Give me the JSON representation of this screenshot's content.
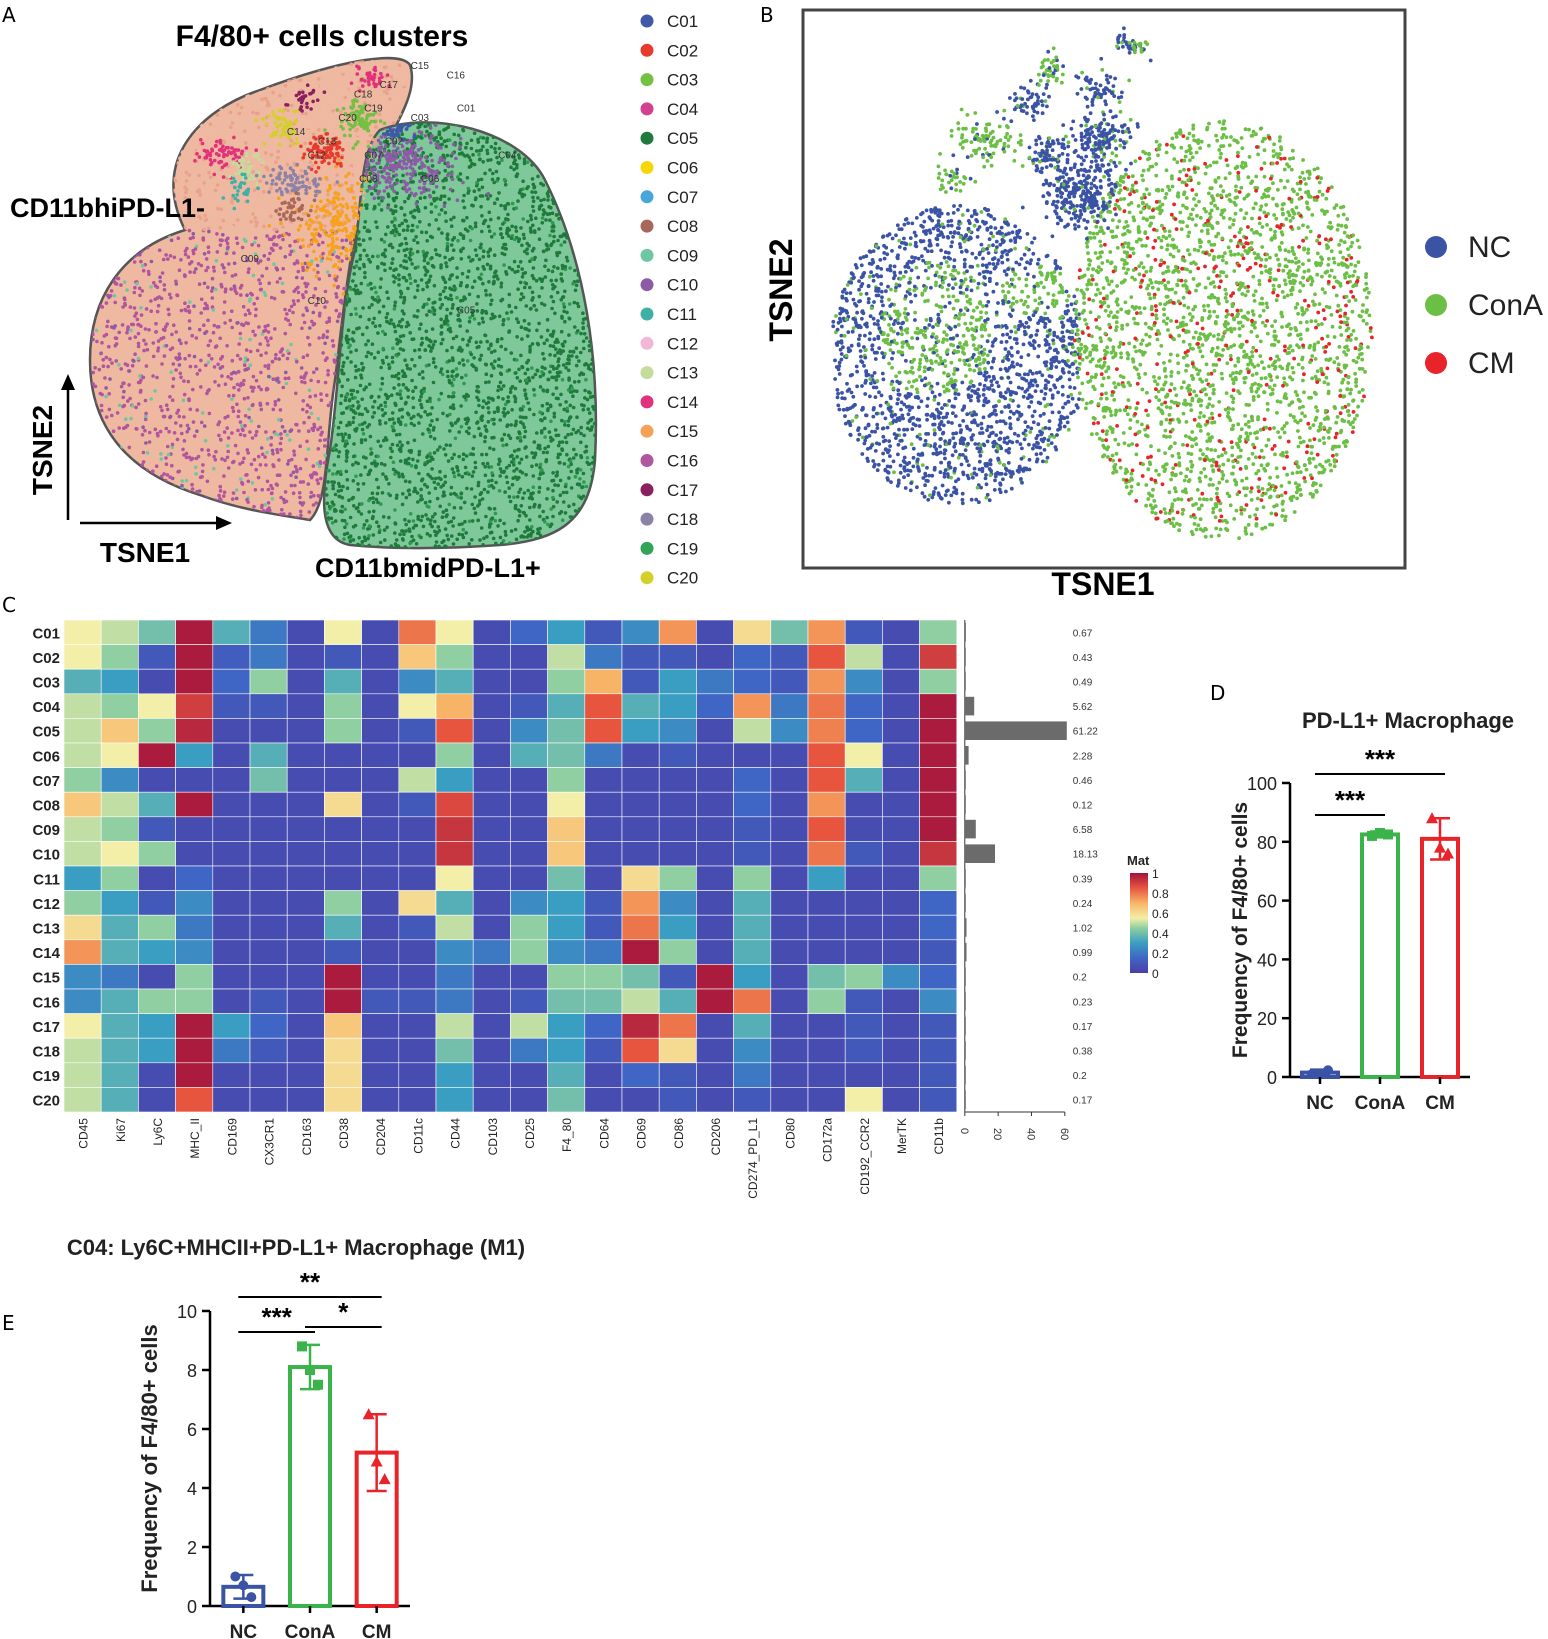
{
  "panel_letters": {
    "a": "A",
    "b": "B",
    "c": "C",
    "d": "D",
    "e": "E"
  },
  "chart_data": [
    {
      "panel": "A",
      "type": "scatter",
      "title": "F4/80+ cells clusters",
      "xlabel": "TSNE1",
      "ylabel": "TSNE2",
      "groups": [
        "CD11bhiPD-L1-",
        "CD11bmidPD-L1+"
      ],
      "legend": [
        "C01",
        "C02",
        "C03",
        "C04",
        "C05",
        "C06",
        "C07",
        "C08",
        "C09",
        "C10",
        "C11",
        "C12",
        "C13",
        "C14",
        "C15",
        "C16",
        "C17",
        "C18",
        "C19",
        "C20"
      ],
      "colors": [
        "#3e59a8",
        "#e83b2c",
        "#75c043",
        "#d4408f",
        "#1f7a3c",
        "#f6d70c",
        "#47a7db",
        "#a9675a",
        "#6fc7a1",
        "#8d5ba6",
        "#40b0a6",
        "#f2b6d6",
        "#c4dc9b",
        "#e3307a",
        "#f5a158",
        "#b0559e",
        "#8a2060",
        "#8c82a8",
        "#31a457",
        "#d4d02a"
      ],
      "cluster_labels": [
        {
          "label": "C01",
          "x": 0.74,
          "y": 0.88
        },
        {
          "label": "C02",
          "x": 0.6,
          "y": 0.81
        },
        {
          "label": "C03",
          "x": 0.65,
          "y": 0.86
        },
        {
          "label": "C04",
          "x": 0.82,
          "y": 0.78
        },
        {
          "label": "C05",
          "x": 0.74,
          "y": 0.45
        },
        {
          "label": "C06",
          "x": 0.67,
          "y": 0.73
        },
        {
          "label": "C07",
          "x": 0.56,
          "y": 0.78
        },
        {
          "label": "C08",
          "x": 0.55,
          "y": 0.73
        },
        {
          "label": "C09",
          "x": 0.32,
          "y": 0.56
        },
        {
          "label": "C10",
          "x": 0.45,
          "y": 0.47
        },
        {
          "label": "C12",
          "x": 0.45,
          "y": 0.78
        },
        {
          "label": "C13",
          "x": 0.47,
          "y": 0.81
        },
        {
          "label": "C14",
          "x": 0.41,
          "y": 0.83
        },
        {
          "label": "C15",
          "x": 0.65,
          "y": 0.97
        },
        {
          "label": "C16",
          "x": 0.72,
          "y": 0.95
        },
        {
          "label": "C17",
          "x": 0.59,
          "y": 0.93
        },
        {
          "label": "C18",
          "x": 0.54,
          "y": 0.91
        },
        {
          "label": "C19",
          "x": 0.56,
          "y": 0.88
        },
        {
          "label": "C20",
          "x": 0.51,
          "y": 0.86
        }
      ]
    },
    {
      "panel": "B",
      "type": "scatter",
      "xlabel": "TSNE1",
      "ylabel": "TSNE2",
      "legend": [
        {
          "name": "NC",
          "color": "#3b53a4"
        },
        {
          "name": "ConA",
          "color": "#6cbf45"
        },
        {
          "name": "CM",
          "color": "#e8232a"
        }
      ]
    },
    {
      "panel": "C",
      "type": "heatmap",
      "rows": [
        "C01",
        "C02",
        "C03",
        "C04",
        "C05",
        "C06",
        "C07",
        "C08",
        "C09",
        "C10",
        "C11",
        "C12",
        "C13",
        "C14",
        "C15",
        "C16",
        "C17",
        "C18",
        "C19",
        "C20"
      ],
      "columns": [
        "CD45",
        "Ki67",
        "Ly6C",
        "MHC_II",
        "CD169",
        "CX3CR1",
        "CD163",
        "CD38",
        "CD204",
        "CD11c",
        "CD44",
        "CD103",
        "CD25",
        "F4_80",
        "CD64",
        "CD69",
        "CD86",
        "CD206",
        "CD274_PD_L1",
        "CD80",
        "CD172a",
        "CD192_CCR2",
        "MerTK",
        "CD11b"
      ],
      "values": [
        [
          0.55,
          0.5,
          0.4,
          0.98,
          0.35,
          0.2,
          0.05,
          0.55,
          0.05,
          0.8,
          0.55,
          0.05,
          0.15,
          0.3,
          0.1,
          0.25,
          0.75,
          0.05,
          0.6,
          0.4,
          0.75,
          0.1,
          0.05,
          0.45
        ],
        [
          0.55,
          0.45,
          0.1,
          0.98,
          0.12,
          0.2,
          0.05,
          0.1,
          0.05,
          0.65,
          0.45,
          0.05,
          0.05,
          0.5,
          0.2,
          0.1,
          0.1,
          0.05,
          0.15,
          0.1,
          0.85,
          0.5,
          0.05,
          0.9
        ],
        [
          0.35,
          0.3,
          0.05,
          0.98,
          0.15,
          0.45,
          0.05,
          0.35,
          0.05,
          0.25,
          0.35,
          0.05,
          0.05,
          0.45,
          0.7,
          0.1,
          0.3,
          0.2,
          0.15,
          0.1,
          0.75,
          0.25,
          0.05,
          0.45
        ],
        [
          0.5,
          0.45,
          0.55,
          0.9,
          0.1,
          0.1,
          0.05,
          0.45,
          0.05,
          0.55,
          0.7,
          0.05,
          0.1,
          0.35,
          0.85,
          0.35,
          0.3,
          0.15,
          0.75,
          0.2,
          0.8,
          0.15,
          0.05,
          0.98
        ],
        [
          0.5,
          0.65,
          0.45,
          0.95,
          0.05,
          0.05,
          0.05,
          0.45,
          0.05,
          0.1,
          0.85,
          0.05,
          0.25,
          0.4,
          0.85,
          0.3,
          0.25,
          0.05,
          0.5,
          0.25,
          0.78,
          0.15,
          0.05,
          0.98
        ],
        [
          0.5,
          0.55,
          0.98,
          0.3,
          0.05,
          0.35,
          0.05,
          0.05,
          0.05,
          0.05,
          0.45,
          0.05,
          0.35,
          0.4,
          0.2,
          0.05,
          0.1,
          0.05,
          0.05,
          0.05,
          0.85,
          0.55,
          0.05,
          0.98
        ],
        [
          0.45,
          0.25,
          0.05,
          0.05,
          0.05,
          0.4,
          0.05,
          0.05,
          0.05,
          0.5,
          0.3,
          0.05,
          0.05,
          0.45,
          0.05,
          0.05,
          0.05,
          0.05,
          0.15,
          0.05,
          0.85,
          0.35,
          0.05,
          0.98
        ],
        [
          0.65,
          0.5,
          0.35,
          0.98,
          0.05,
          0.05,
          0.05,
          0.6,
          0.05,
          0.1,
          0.88,
          0.05,
          0.05,
          0.55,
          0.05,
          0.05,
          0.05,
          0.05,
          0.15,
          0.05,
          0.75,
          0.05,
          0.05,
          0.98
        ],
        [
          0.5,
          0.45,
          0.1,
          0.05,
          0.05,
          0.05,
          0.05,
          0.05,
          0.05,
          0.05,
          0.92,
          0.05,
          0.05,
          0.65,
          0.05,
          0.05,
          0.05,
          0.05,
          0.1,
          0.05,
          0.85,
          0.05,
          0.05,
          0.98
        ],
        [
          0.5,
          0.55,
          0.45,
          0.05,
          0.05,
          0.05,
          0.05,
          0.05,
          0.05,
          0.05,
          0.92,
          0.05,
          0.05,
          0.65,
          0.05,
          0.05,
          0.05,
          0.05,
          0.1,
          0.05,
          0.8,
          0.1,
          0.05,
          0.92
        ],
        [
          0.3,
          0.45,
          0.05,
          0.15,
          0.05,
          0.05,
          0.05,
          0.05,
          0.05,
          0.05,
          0.55,
          0.05,
          0.05,
          0.4,
          0.05,
          0.6,
          0.45,
          0.05,
          0.45,
          0.05,
          0.3,
          0.05,
          0.05,
          0.45
        ],
        [
          0.45,
          0.3,
          0.1,
          0.25,
          0.05,
          0.05,
          0.05,
          0.45,
          0.05,
          0.6,
          0.35,
          0.05,
          0.25,
          0.3,
          0.1,
          0.75,
          0.25,
          0.05,
          0.35,
          0.05,
          0.05,
          0.05,
          0.05,
          0.15
        ],
        [
          0.6,
          0.35,
          0.45,
          0.2,
          0.05,
          0.05,
          0.05,
          0.35,
          0.05,
          0.1,
          0.5,
          0.05,
          0.45,
          0.3,
          0.1,
          0.8,
          0.3,
          0.05,
          0.35,
          0.05,
          0.05,
          0.05,
          0.05,
          0.15
        ],
        [
          0.75,
          0.35,
          0.3,
          0.25,
          0.05,
          0.05,
          0.05,
          0.1,
          0.05,
          0.05,
          0.25,
          0.2,
          0.45,
          0.25,
          0.2,
          0.98,
          0.45,
          0.05,
          0.35,
          0.05,
          0.05,
          0.05,
          0.05,
          0.1
        ],
        [
          0.25,
          0.2,
          0.05,
          0.45,
          0.05,
          0.05,
          0.05,
          0.98,
          0.05,
          0.05,
          0.2,
          0.05,
          0.05,
          0.45,
          0.45,
          0.4,
          0.1,
          0.98,
          0.3,
          0.05,
          0.4,
          0.45,
          0.25,
          0.15
        ],
        [
          0.25,
          0.35,
          0.45,
          0.45,
          0.05,
          0.1,
          0.05,
          0.98,
          0.1,
          0.1,
          0.2,
          0.05,
          0.1,
          0.4,
          0.4,
          0.5,
          0.35,
          0.98,
          0.8,
          0.05,
          0.45,
          0.1,
          0.05,
          0.25
        ],
        [
          0.55,
          0.35,
          0.3,
          0.98,
          0.3,
          0.15,
          0.05,
          0.65,
          0.05,
          0.05,
          0.5,
          0.05,
          0.5,
          0.3,
          0.15,
          0.95,
          0.8,
          0.05,
          0.35,
          0.05,
          0.05,
          0.1,
          0.05,
          0.1
        ],
        [
          0.5,
          0.35,
          0.3,
          0.98,
          0.2,
          0.1,
          0.05,
          0.6,
          0.05,
          0.05,
          0.4,
          0.05,
          0.2,
          0.3,
          0.1,
          0.85,
          0.6,
          0.05,
          0.25,
          0.05,
          0.05,
          0.1,
          0.05,
          0.1
        ],
        [
          0.5,
          0.35,
          0.05,
          0.98,
          0.05,
          0.05,
          0.05,
          0.6,
          0.05,
          0.05,
          0.3,
          0.05,
          0.05,
          0.35,
          0.05,
          0.15,
          0.1,
          0.05,
          0.2,
          0.05,
          0.05,
          0.05,
          0.05,
          0.1
        ],
        [
          0.5,
          0.35,
          0.05,
          0.85,
          0.05,
          0.05,
          0.05,
          0.6,
          0.05,
          0.05,
          0.3,
          0.05,
          0.05,
          0.4,
          0.05,
          0.05,
          0.1,
          0.05,
          0.1,
          0.05,
          0.05,
          0.55,
          0.05,
          0.1
        ]
      ],
      "bar_values": [
        0.67,
        0.43,
        0.49,
        5.62,
        61.22,
        2.28,
        0.46,
        0.12,
        6.58,
        18.13,
        0.39,
        0.24,
        1.02,
        0.99,
        0.2,
        0.23,
        0.17,
        0.38,
        0.2,
        0.17
      ],
      "bar_labels": [
        "0.67",
        "0.43",
        "0.49",
        "5.62",
        "61.22",
        "2.28",
        "0.46",
        "0.12",
        "6.58",
        "18.13",
        "0.39",
        "0.24",
        "1.02",
        "0.99",
        "0.2",
        "0.23",
        "0.17",
        "0.38",
        "0.2",
        "0.17"
      ],
      "bar_axis": {
        "ticks": [
          "0",
          "20",
          "40",
          "60"
        ],
        "max": 60
      },
      "colorbar": {
        "title": "Mat",
        "ticks": [
          "1",
          "0.8",
          "0.6",
          "0.4",
          "0.2",
          "0"
        ]
      }
    },
    {
      "panel": "D",
      "type": "bar",
      "title": "PD-L1+ Macrophage",
      "ylabel": "Frequency of F4/80+ cells",
      "categories": [
        "NC",
        "ConA",
        "CM"
      ],
      "values": [
        1.5,
        82.5,
        81
      ],
      "errors": [
        1,
        1,
        7
      ],
      "colors": [
        "#3b53a4",
        "#3ab44a",
        "#e8232a"
      ],
      "points": [
        [
          1,
          1.2,
          2.3
        ],
        [
          82,
          83,
          82.5
        ],
        [
          88,
          78,
          76
        ]
      ],
      "ylim": [
        0,
        100
      ],
      "yticks": [
        "0",
        "20",
        "40",
        "60",
        "80",
        "100"
      ],
      "significance": [
        {
          "from": "NC",
          "to": "ConA",
          "label": "***"
        },
        {
          "from": "NC",
          "to": "CM",
          "label": "***"
        }
      ]
    },
    {
      "panel": "E",
      "type": "bar",
      "title": "C04: Ly6C+MHCII+PD-L1+ Macrophage (M1)",
      "ylabel": "Frequency of F4/80+ cells",
      "categories": [
        "NC",
        "ConA",
        "CM"
      ],
      "values": [
        0.65,
        8.1,
        5.2
      ],
      "errors": [
        0.4,
        0.75,
        1.3
      ],
      "colors": [
        "#3b53a4",
        "#3ab44a",
        "#e8232a"
      ],
      "points": [
        [
          1.0,
          0.7,
          0.3
        ],
        [
          8.8,
          8.0,
          7.5
        ],
        [
          6.5,
          4.9,
          4.3
        ]
      ],
      "ylim": [
        0,
        10
      ],
      "yticks": [
        "0",
        "2",
        "4",
        "6",
        "8",
        "10"
      ],
      "significance": [
        {
          "from": "NC",
          "to": "ConA",
          "label": "***"
        },
        {
          "from": "NC",
          "to": "CM",
          "label": "**"
        },
        {
          "from": "ConA",
          "to": "CM",
          "label": "*"
        }
      ]
    }
  ]
}
